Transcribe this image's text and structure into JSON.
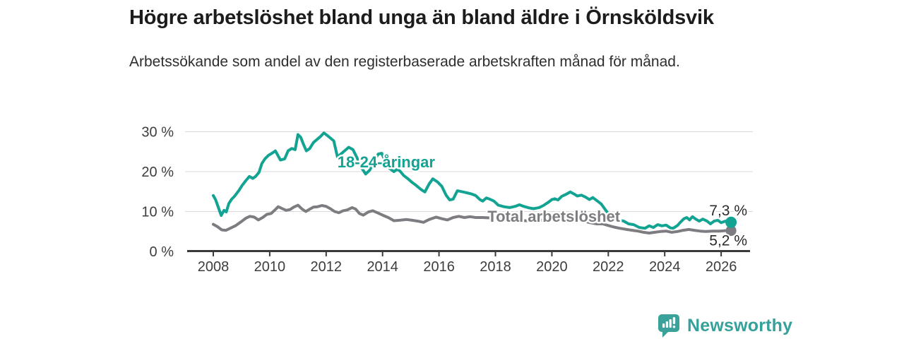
{
  "header": {
    "title": "Högre arbetslöshet bland unga än bland äldre i Örnsköldsvik",
    "subtitle": "Arbetssökande som andel av den registerbaserade arbetskraften månad för månad."
  },
  "chart_data": {
    "type": "line",
    "unit": "%",
    "grid": "horizontal",
    "legend": "inline-labels",
    "x_axis": {
      "tick_values": [
        2008,
        2010,
        2012,
        2014,
        2016,
        2018,
        2020,
        2022,
        2024,
        2026
      ],
      "tick_labels": [
        "2008",
        "2010",
        "2012",
        "2014",
        "2016",
        "2018",
        "2020",
        "2022",
        "2024",
        "2026"
      ],
      "range": [
        2007.1,
        2027.0
      ]
    },
    "y_axis": {
      "tick_values": [
        0,
        10,
        20,
        30
      ],
      "tick_labels": [
        "0 %",
        "10 %",
        "20 %",
        "30 %"
      ],
      "gridline_values": [
        10,
        20,
        30
      ],
      "range": [
        0,
        32
      ]
    },
    "series": [
      {
        "name": "Total arbetslöshet",
        "color": "#7e7b81",
        "label_at": [
          2020.07,
          7.45
        ],
        "end_label": "5,2 %",
        "end_value": 5.2,
        "end_label_side": "below",
        "dot_radius": 7.5,
        "points": [
          [
            2008.0,
            6.8
          ],
          [
            2008.15,
            6.2
          ],
          [
            2008.3,
            5.4
          ],
          [
            2008.45,
            5.3
          ],
          [
            2008.6,
            5.8
          ],
          [
            2008.8,
            6.5
          ],
          [
            2009.0,
            7.5
          ],
          [
            2009.15,
            8.3
          ],
          [
            2009.3,
            8.8
          ],
          [
            2009.45,
            8.6
          ],
          [
            2009.6,
            7.9
          ],
          [
            2009.75,
            8.5
          ],
          [
            2009.9,
            9.3
          ],
          [
            2010.05,
            9.5
          ],
          [
            2010.2,
            10.5
          ],
          [
            2010.3,
            11.2
          ],
          [
            2010.45,
            10.7
          ],
          [
            2010.58,
            10.3
          ],
          [
            2010.72,
            10.5
          ],
          [
            2010.85,
            11.1
          ],
          [
            2011.0,
            11.6
          ],
          [
            2011.15,
            10.6
          ],
          [
            2011.28,
            10.0
          ],
          [
            2011.42,
            10.6
          ],
          [
            2011.55,
            11.1
          ],
          [
            2011.7,
            11.2
          ],
          [
            2011.85,
            11.5
          ],
          [
            2012.0,
            11.3
          ],
          [
            2012.15,
            10.7
          ],
          [
            2012.3,
            10.0
          ],
          [
            2012.45,
            9.7
          ],
          [
            2012.6,
            10.2
          ],
          [
            2012.75,
            10.4
          ],
          [
            2012.92,
            11.0
          ],
          [
            2013.05,
            10.6
          ],
          [
            2013.18,
            9.5
          ],
          [
            2013.32,
            9.1
          ],
          [
            2013.5,
            9.9
          ],
          [
            2013.65,
            10.2
          ],
          [
            2013.85,
            9.6
          ],
          [
            2014.0,
            9.1
          ],
          [
            2014.2,
            8.5
          ],
          [
            2014.4,
            7.7
          ],
          [
            2014.6,
            7.8
          ],
          [
            2014.85,
            8.0
          ],
          [
            2015.05,
            7.8
          ],
          [
            2015.25,
            7.6
          ],
          [
            2015.45,
            7.3
          ],
          [
            2015.65,
            8.0
          ],
          [
            2015.9,
            8.6
          ],
          [
            2016.1,
            8.2
          ],
          [
            2016.3,
            7.9
          ],
          [
            2016.5,
            8.5
          ],
          [
            2016.7,
            8.8
          ],
          [
            2016.9,
            8.5
          ],
          [
            2017.1,
            8.7
          ],
          [
            2017.3,
            8.5
          ],
          [
            2017.55,
            8.5
          ],
          [
            2017.8,
            8.4
          ],
          [
            2018.1,
            8.2
          ],
          [
            2018.4,
            8.0
          ],
          [
            2018.7,
            7.8
          ],
          [
            2019.0,
            7.7
          ],
          [
            2019.3,
            7.7
          ],
          [
            2019.6,
            7.8
          ],
          [
            2019.9,
            8.1
          ],
          [
            2020.2,
            8.5
          ],
          [
            2020.5,
            8.6
          ],
          [
            2020.8,
            8.2
          ],
          [
            2021.1,
            7.7
          ],
          [
            2021.35,
            7.2
          ],
          [
            2021.6,
            6.9
          ],
          [
            2021.8,
            6.9
          ],
          [
            2022.0,
            6.5
          ],
          [
            2022.2,
            6.1
          ],
          [
            2022.4,
            5.8
          ],
          [
            2022.65,
            5.5
          ],
          [
            2022.85,
            5.3
          ],
          [
            2023.05,
            5.1
          ],
          [
            2023.25,
            4.8
          ],
          [
            2023.45,
            4.6
          ],
          [
            2023.65,
            4.8
          ],
          [
            2023.85,
            5.0
          ],
          [
            2024.05,
            5.1
          ],
          [
            2024.25,
            4.8
          ],
          [
            2024.45,
            5.0
          ],
          [
            2024.65,
            5.3
          ],
          [
            2024.85,
            5.5
          ],
          [
            2025.05,
            5.3
          ],
          [
            2025.25,
            5.1
          ],
          [
            2025.45,
            5.0
          ],
          [
            2025.7,
            5.1
          ],
          [
            2025.95,
            5.1
          ],
          [
            2026.15,
            5.2
          ],
          [
            2026.35,
            5.2
          ]
        ]
      },
      {
        "name": "18-24-åringar",
        "color": "#12a392",
        "label_at": [
          2014.13,
          21.05
        ],
        "end_label": "7,3 %",
        "end_value": 7.3,
        "end_label_side": "above",
        "dot_radius": 8,
        "points": [
          [
            2008.0,
            14.0
          ],
          [
            2008.08,
            13.0
          ],
          [
            2008.17,
            11.2
          ],
          [
            2008.28,
            9.0
          ],
          [
            2008.38,
            10.3
          ],
          [
            2008.46,
            9.9
          ],
          [
            2008.55,
            12.0
          ],
          [
            2008.65,
            13.1
          ],
          [
            2008.75,
            13.8
          ],
          [
            2008.9,
            15.2
          ],
          [
            2009.03,
            16.6
          ],
          [
            2009.15,
            17.7
          ],
          [
            2009.28,
            18.8
          ],
          [
            2009.4,
            18.3
          ],
          [
            2009.5,
            18.8
          ],
          [
            2009.62,
            19.8
          ],
          [
            2009.72,
            22.0
          ],
          [
            2009.83,
            23.2
          ],
          [
            2009.96,
            24.1
          ],
          [
            2010.08,
            24.6
          ],
          [
            2010.2,
            25.2
          ],
          [
            2010.38,
            22.9
          ],
          [
            2010.53,
            23.2
          ],
          [
            2010.65,
            25.2
          ],
          [
            2010.78,
            25.8
          ],
          [
            2010.9,
            25.5
          ],
          [
            2011.0,
            29.3
          ],
          [
            2011.1,
            28.6
          ],
          [
            2011.2,
            26.8
          ],
          [
            2011.3,
            25.2
          ],
          [
            2011.42,
            25.8
          ],
          [
            2011.55,
            27.3
          ],
          [
            2011.7,
            28.2
          ],
          [
            2011.8,
            28.8
          ],
          [
            2011.92,
            29.7
          ],
          [
            2012.05,
            29.0
          ],
          [
            2012.17,
            28.3
          ],
          [
            2012.27,
            27.7
          ],
          [
            2012.4,
            23.7
          ],
          [
            2012.52,
            24.4
          ],
          [
            2012.65,
            25.2
          ],
          [
            2012.8,
            26.1
          ],
          [
            2012.95,
            25.5
          ],
          [
            2013.1,
            23.4
          ],
          [
            2013.25,
            21.0
          ],
          [
            2013.4,
            19.4
          ],
          [
            2013.55,
            20.4
          ],
          [
            2013.7,
            22.8
          ],
          [
            2013.85,
            24.4
          ],
          [
            2013.97,
            24.6
          ],
          [
            2014.1,
            22.5
          ],
          [
            2014.25,
            20.8
          ],
          [
            2014.4,
            20.0
          ],
          [
            2014.52,
            20.6
          ],
          [
            2014.62,
            20.1
          ],
          [
            2014.75,
            19.0
          ],
          [
            2014.9,
            18.2
          ],
          [
            2015.05,
            17.3
          ],
          [
            2015.2,
            16.5
          ],
          [
            2015.35,
            15.6
          ],
          [
            2015.5,
            14.9
          ],
          [
            2015.65,
            16.9
          ],
          [
            2015.78,
            18.2
          ],
          [
            2015.95,
            17.4
          ],
          [
            2016.1,
            16.3
          ],
          [
            2016.25,
            14.1
          ],
          [
            2016.38,
            12.9
          ],
          [
            2016.5,
            13.1
          ],
          [
            2016.65,
            15.2
          ],
          [
            2016.8,
            15.0
          ],
          [
            2016.98,
            14.7
          ],
          [
            2017.15,
            14.4
          ],
          [
            2017.3,
            14.0
          ],
          [
            2017.45,
            13.0
          ],
          [
            2017.55,
            12.6
          ],
          [
            2017.68,
            13.4
          ],
          [
            2017.8,
            13.1
          ],
          [
            2017.95,
            12.6
          ],
          [
            2018.1,
            11.6
          ],
          [
            2018.3,
            11.2
          ],
          [
            2018.5,
            11.0
          ],
          [
            2018.7,
            11.3
          ],
          [
            2018.85,
            11.7
          ],
          [
            2019.0,
            11.3
          ],
          [
            2019.2,
            10.9
          ],
          [
            2019.35,
            10.7
          ],
          [
            2019.55,
            11.0
          ],
          [
            2019.7,
            11.5
          ],
          [
            2019.85,
            12.2
          ],
          [
            2020.0,
            13.0
          ],
          [
            2020.1,
            13.2
          ],
          [
            2020.22,
            12.9
          ],
          [
            2020.35,
            13.8
          ],
          [
            2020.5,
            14.3
          ],
          [
            2020.65,
            14.9
          ],
          [
            2020.78,
            14.4
          ],
          [
            2020.9,
            13.9
          ],
          [
            2021.05,
            14.1
          ],
          [
            2021.2,
            13.6
          ],
          [
            2021.33,
            13.0
          ],
          [
            2021.45,
            13.5
          ],
          [
            2021.6,
            12.7
          ],
          [
            2021.75,
            11.9
          ],
          [
            2021.9,
            10.4
          ],
          [
            2022.05,
            9.0
          ],
          [
            2022.2,
            8.2
          ],
          [
            2022.4,
            7.8
          ],
          [
            2022.55,
            7.6
          ],
          [
            2022.72,
            6.9
          ],
          [
            2022.9,
            6.7
          ],
          [
            2023.1,
            6.0
          ],
          [
            2023.3,
            5.8
          ],
          [
            2023.45,
            6.4
          ],
          [
            2023.6,
            6.0
          ],
          [
            2023.75,
            6.7
          ],
          [
            2023.9,
            6.4
          ],
          [
            2024.05,
            6.6
          ],
          [
            2024.2,
            5.9
          ],
          [
            2024.3,
            5.8
          ],
          [
            2024.45,
            6.5
          ],
          [
            2024.55,
            7.3
          ],
          [
            2024.68,
            8.2
          ],
          [
            2024.78,
            8.5
          ],
          [
            2024.88,
            7.9
          ],
          [
            2024.98,
            8.7
          ],
          [
            2025.1,
            8.1
          ],
          [
            2025.22,
            7.6
          ],
          [
            2025.35,
            8.1
          ],
          [
            2025.5,
            7.6
          ],
          [
            2025.62,
            6.9
          ],
          [
            2025.75,
            7.6
          ],
          [
            2025.88,
            7.8
          ],
          [
            2026.0,
            7.2
          ],
          [
            2026.15,
            7.6
          ],
          [
            2026.35,
            7.3
          ]
        ]
      }
    ]
  },
  "footer": {
    "brand": "Newsworthy",
    "logo": "newsworthy-badge-icon",
    "brand_color": "#35a19b"
  }
}
